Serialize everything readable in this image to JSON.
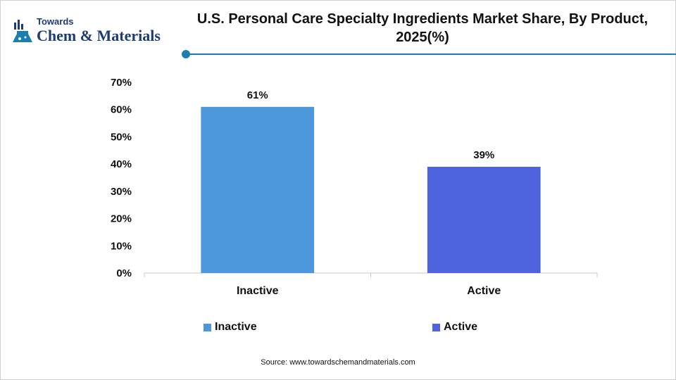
{
  "brand": {
    "small": "Towards",
    "big": "Chem & Materials"
  },
  "colors": {
    "accent": "#1a7fb0",
    "inactive": "#4f97dc",
    "active": "#4f63de"
  },
  "chart_data": {
    "type": "bar",
    "title": "U.S. Personal Care Specialty Ingredients Market Share, By Product, 2025(%)",
    "categories": [
      "Inactive",
      "Active"
    ],
    "values": [
      61,
      39
    ],
    "data_labels": [
      "61%",
      "39%"
    ],
    "bar_colors": [
      "#4f97dc",
      "#4f63de"
    ],
    "ylim": [
      0,
      70
    ],
    "yticks": [
      0,
      10,
      20,
      30,
      40,
      50,
      60,
      70
    ],
    "ytick_labels": [
      "0%",
      "10%",
      "20%",
      "30%",
      "40%",
      "50%",
      "60%",
      "70%"
    ],
    "xlabel": "",
    "ylabel": "",
    "grid": false,
    "legend": {
      "placement": "bottom",
      "entries": [
        {
          "label": "Inactive",
          "color": "#4f97dc"
        },
        {
          "label": "Active",
          "color": "#4f63de"
        }
      ]
    }
  },
  "source": "Source:  www.towardschemandmaterials.com"
}
